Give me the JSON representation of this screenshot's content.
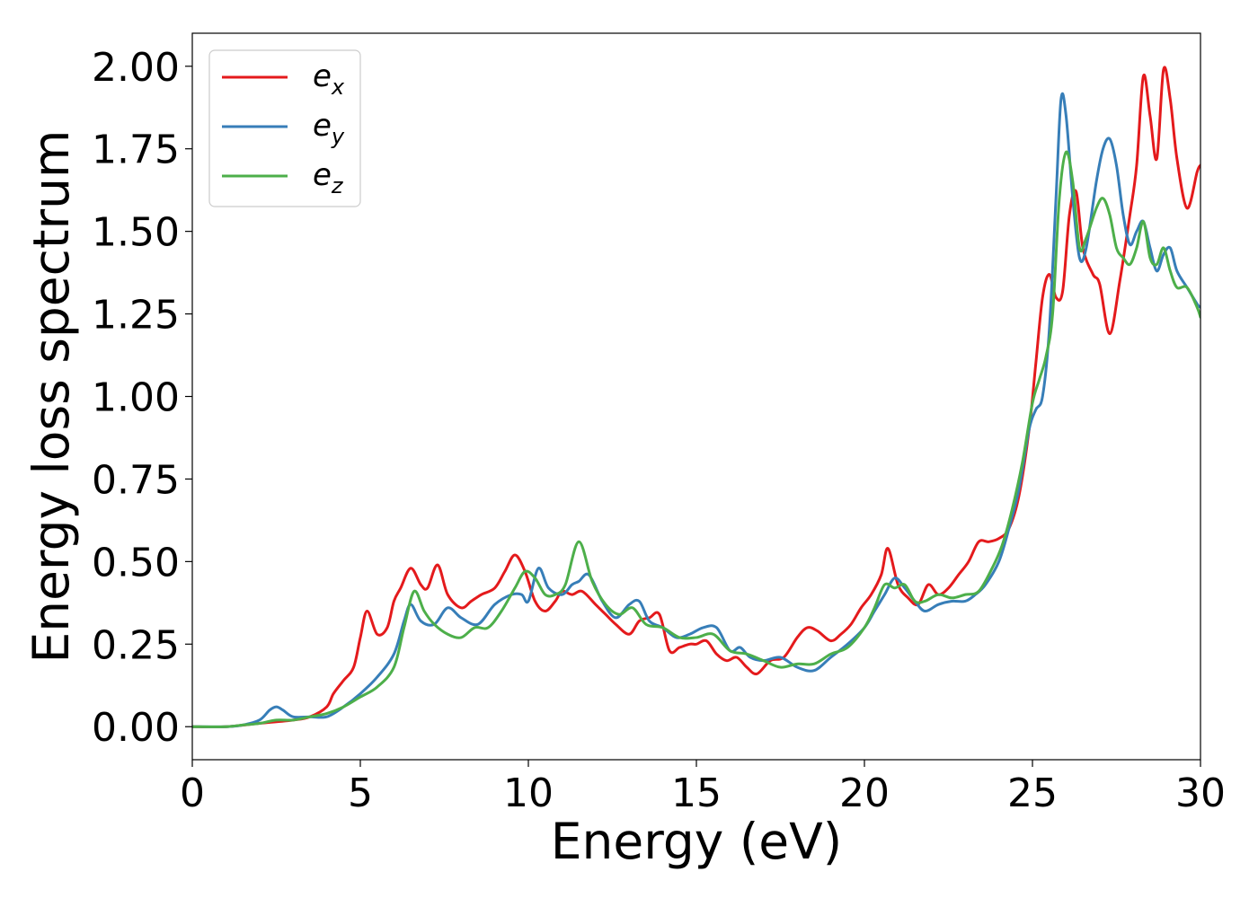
{
  "chart_data": {
    "type": "line",
    "title": "",
    "xlabel": "Energy (eV)",
    "ylabel": "Energy loss spectrum",
    "xlim": [
      0,
      30
    ],
    "ylim": [
      -0.1,
      2.1
    ],
    "xticks": [
      0,
      5,
      10,
      15,
      20,
      25,
      30
    ],
    "xtick_labels": [
      "0",
      "5",
      "10",
      "15",
      "20",
      "25",
      "30"
    ],
    "yticks": [
      0.0,
      0.25,
      0.5,
      0.75,
      1.0,
      1.25,
      1.5,
      1.75,
      2.0
    ],
    "ytick_labels": [
      "0.00",
      "0.25",
      "0.50",
      "0.75",
      "1.00",
      "1.25",
      "1.50",
      "1.75",
      "2.00"
    ],
    "grid": false,
    "legend_position": "top-left",
    "series": [
      {
        "name": "e_x",
        "legend_base": "e",
        "legend_sub": "x",
        "color": "#e41a1c",
        "x": [
          0,
          1,
          2,
          3,
          3.5,
          4,
          4.2,
          4.5,
          4.8,
          5.0,
          5.2,
          5.5,
          5.8,
          6.0,
          6.2,
          6.5,
          6.8,
          7.0,
          7.3,
          7.6,
          8.0,
          8.3,
          8.6,
          9.0,
          9.3,
          9.6,
          9.9,
          10.2,
          10.5,
          10.8,
          11.0,
          11.3,
          11.6,
          12.0,
          12.3,
          12.6,
          13.0,
          13.3,
          13.6,
          13.9,
          14.2,
          14.5,
          14.8,
          15.0,
          15.3,
          15.6,
          15.9,
          16.2,
          16.5,
          16.8,
          17.2,
          17.6,
          18.0,
          18.3,
          18.6,
          19.0,
          19.3,
          19.6,
          19.9,
          20.2,
          20.5,
          20.7,
          21.0,
          21.3,
          21.6,
          21.9,
          22.2,
          22.5,
          22.8,
          23.1,
          23.4,
          23.7,
          24.0,
          24.3,
          24.6,
          24.9,
          25.1,
          25.3,
          25.5,
          25.7,
          25.9,
          26.1,
          26.3,
          26.5,
          26.8,
          27.0,
          27.3,
          27.6,
          27.9,
          28.1,
          28.3,
          28.5,
          28.7,
          28.9,
          29.1,
          29.3,
          29.6,
          29.9,
          30.0
        ],
        "values": [
          0,
          0,
          0.01,
          0.02,
          0.03,
          0.06,
          0.1,
          0.14,
          0.18,
          0.27,
          0.35,
          0.28,
          0.3,
          0.38,
          0.42,
          0.48,
          0.43,
          0.42,
          0.49,
          0.4,
          0.36,
          0.38,
          0.4,
          0.42,
          0.47,
          0.52,
          0.47,
          0.38,
          0.35,
          0.38,
          0.41,
          0.4,
          0.41,
          0.37,
          0.34,
          0.31,
          0.28,
          0.32,
          0.33,
          0.34,
          0.23,
          0.24,
          0.25,
          0.25,
          0.26,
          0.22,
          0.2,
          0.21,
          0.18,
          0.16,
          0.2,
          0.21,
          0.27,
          0.3,
          0.29,
          0.26,
          0.28,
          0.31,
          0.36,
          0.4,
          0.46,
          0.54,
          0.43,
          0.39,
          0.37,
          0.43,
          0.4,
          0.42,
          0.46,
          0.5,
          0.56,
          0.56,
          0.57,
          0.6,
          0.7,
          0.9,
          1.1,
          1.3,
          1.37,
          1.3,
          1.32,
          1.55,
          1.62,
          1.45,
          1.37,
          1.34,
          1.19,
          1.35,
          1.55,
          1.7,
          1.97,
          1.85,
          1.72,
          1.99,
          1.9,
          1.72,
          1.57,
          1.68,
          1.7
        ]
      },
      {
        "name": "e_y",
        "legend_base": "e",
        "legend_sub": "y",
        "color": "#377eb8",
        "x": [
          0,
          1,
          1.5,
          2.0,
          2.3,
          2.5,
          2.7,
          3.0,
          3.5,
          4.0,
          4.5,
          5.0,
          5.5,
          6.0,
          6.3,
          6.5,
          6.8,
          7.2,
          7.6,
          8.0,
          8.5,
          9.0,
          9.5,
          9.8,
          10.0,
          10.3,
          10.6,
          11.0,
          11.3,
          11.5,
          11.8,
          12.2,
          12.6,
          13.0,
          13.3,
          13.6,
          14.0,
          14.4,
          14.8,
          15.2,
          15.6,
          16.0,
          16.3,
          16.6,
          17.0,
          17.5,
          18.0,
          18.5,
          19.0,
          19.5,
          20.0,
          20.3,
          20.6,
          20.9,
          21.2,
          21.5,
          21.8,
          22.2,
          22.6,
          23.0,
          23.3,
          23.6,
          24.0,
          24.3,
          24.6,
          24.9,
          25.1,
          25.3,
          25.5,
          25.7,
          25.85,
          26.0,
          26.2,
          26.4,
          26.6,
          26.9,
          27.1,
          27.3,
          27.5,
          27.7,
          27.9,
          28.1,
          28.3,
          28.5,
          28.7,
          28.9,
          29.1,
          29.3,
          29.6,
          29.9,
          30.0
        ],
        "values": [
          0,
          0,
          0.005,
          0.02,
          0.05,
          0.06,
          0.05,
          0.03,
          0.03,
          0.03,
          0.06,
          0.1,
          0.15,
          0.22,
          0.32,
          0.37,
          0.32,
          0.31,
          0.36,
          0.33,
          0.31,
          0.37,
          0.4,
          0.4,
          0.38,
          0.48,
          0.42,
          0.4,
          0.43,
          0.44,
          0.46,
          0.38,
          0.33,
          0.37,
          0.38,
          0.32,
          0.3,
          0.27,
          0.28,
          0.3,
          0.3,
          0.23,
          0.24,
          0.21,
          0.2,
          0.21,
          0.18,
          0.17,
          0.21,
          0.25,
          0.3,
          0.35,
          0.4,
          0.45,
          0.42,
          0.38,
          0.35,
          0.37,
          0.38,
          0.38,
          0.4,
          0.43,
          0.5,
          0.6,
          0.72,
          0.9,
          0.96,
          1.0,
          1.2,
          1.6,
          1.9,
          1.85,
          1.6,
          1.42,
          1.45,
          1.65,
          1.75,
          1.78,
          1.7,
          1.55,
          1.46,
          1.5,
          1.53,
          1.45,
          1.38,
          1.43,
          1.45,
          1.38,
          1.33,
          1.28,
          1.27
        ]
      },
      {
        "name": "e_z",
        "legend_base": "e",
        "legend_sub": "z",
        "color": "#4daf4a",
        "x": [
          0,
          1,
          1.5,
          2.0,
          2.5,
          3.0,
          3.5,
          4.0,
          4.5,
          5.0,
          5.5,
          6.0,
          6.3,
          6.6,
          6.9,
          7.2,
          7.6,
          8.0,
          8.4,
          8.8,
          9.2,
          9.6,
          9.9,
          10.2,
          10.5,
          10.8,
          11.1,
          11.5,
          11.9,
          12.3,
          12.7,
          13.1,
          13.5,
          14.0,
          14.5,
          15.0,
          15.5,
          16.0,
          16.5,
          17.0,
          17.5,
          18.0,
          18.5,
          19.0,
          19.5,
          20.0,
          20.3,
          20.6,
          20.9,
          21.2,
          21.5,
          21.8,
          22.2,
          22.6,
          23.0,
          23.4,
          23.8,
          24.1,
          24.4,
          24.7,
          25.0,
          25.2,
          25.4,
          25.6,
          25.8,
          26.0,
          26.2,
          26.4,
          26.6,
          26.9,
          27.1,
          27.3,
          27.5,
          27.7,
          27.9,
          28.1,
          28.3,
          28.5,
          28.7,
          28.9,
          29.1,
          29.3,
          29.6,
          29.9,
          30.0
        ],
        "values": [
          0,
          0,
          0.005,
          0.01,
          0.02,
          0.02,
          0.03,
          0.04,
          0.06,
          0.09,
          0.12,
          0.18,
          0.3,
          0.41,
          0.35,
          0.31,
          0.28,
          0.27,
          0.3,
          0.3,
          0.35,
          0.42,
          0.47,
          0.45,
          0.4,
          0.4,
          0.43,
          0.56,
          0.44,
          0.37,
          0.34,
          0.36,
          0.31,
          0.3,
          0.27,
          0.27,
          0.28,
          0.23,
          0.22,
          0.2,
          0.18,
          0.19,
          0.19,
          0.22,
          0.24,
          0.3,
          0.36,
          0.43,
          0.42,
          0.43,
          0.38,
          0.38,
          0.4,
          0.39,
          0.4,
          0.41,
          0.48,
          0.55,
          0.66,
          0.8,
          0.98,
          1.05,
          1.12,
          1.25,
          1.6,
          1.74,
          1.65,
          1.45,
          1.48,
          1.57,
          1.6,
          1.55,
          1.45,
          1.42,
          1.4,
          1.45,
          1.53,
          1.42,
          1.4,
          1.45,
          1.38,
          1.33,
          1.33,
          1.27,
          1.24
        ]
      }
    ]
  }
}
